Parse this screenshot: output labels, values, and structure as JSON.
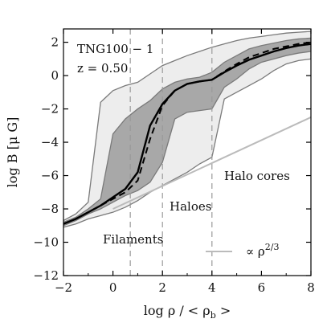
{
  "chart_data": {
    "type": "line",
    "xlabel": "log ρ / < ρ_b >",
    "ylabel": "log B [μ G]",
    "xlim": [
      -2,
      8
    ],
    "ylim": [
      -12,
      2.8
    ],
    "xticks": [
      "−2",
      "0",
      "2",
      "4",
      "6",
      "8"
    ],
    "yticks": [
      "−12",
      "−10",
      "−8",
      "−6",
      "−4",
      "−2",
      "0",
      "2"
    ],
    "xtick_values": [
      -2,
      0,
      2,
      4,
      6,
      8
    ],
    "ytick_values": [
      -12,
      -10,
      -8,
      -6,
      -4,
      -2,
      0,
      2
    ],
    "annotation_lines": [
      "TNG100 − 1",
      "z = 0.50"
    ],
    "region_labels": [
      "Filaments",
      "Haloes",
      "Halo cores"
    ],
    "legend_label": "∝ ρ^{2/3}",
    "legend_position": "bottom-right",
    "vlines": [
      0.7,
      2.0,
      4.0
    ],
    "colors": {
      "outer_band": "#ededed",
      "inner_band": "#a8a8a8",
      "band_edge": "#7a7a7a",
      "median": "#000000",
      "mean": "#000000",
      "reference": "#bbbbbb",
      "vline": "#999999"
    },
    "series": [
      {
        "style": "solid",
        "x": [
          -2,
          -1.5,
          -1,
          -0.5,
          0,
          0.5,
          1,
          1.25,
          1.5,
          2,
          2.5,
          3,
          3.5,
          4,
          4.5,
          5,
          5.5,
          6,
          6.5,
          7,
          7.5,
          8
        ],
        "y": [
          -8.9,
          -8.6,
          -8.2,
          -7.8,
          -7.3,
          -6.8,
          -5.8,
          -4.4,
          -3.0,
          -1.7,
          -0.9,
          -0.5,
          -0.35,
          -0.25,
          0.2,
          0.6,
          0.95,
          1.2,
          1.45,
          1.65,
          1.8,
          1.9
        ]
      },
      {
        "style": "dashed",
        "x": [
          -2,
          -1.5,
          -1,
          -0.5,
          0,
          0.5,
          1,
          1.5,
          2,
          2.5,
          3,
          3.5,
          4,
          4.5,
          5,
          5.5,
          6,
          6.5,
          7,
          7.5,
          8
        ],
        "y": [
          -8.9,
          -8.6,
          -8.2,
          -7.8,
          -7.4,
          -7.0,
          -6.3,
          -3.8,
          -1.8,
          -0.9,
          -0.5,
          -0.35,
          -0.25,
          0.25,
          0.7,
          1.1,
          1.35,
          1.6,
          1.75,
          1.9,
          2.0
        ]
      },
      {
        "style": "band_outer",
        "x": [
          -2,
          -1.5,
          -1,
          -0.5,
          0,
          0.5,
          1,
          1.5,
          2,
          2.5,
          3,
          3.5,
          4,
          4.5,
          5,
          5.5,
          6,
          6.5,
          7,
          7.5,
          8
        ],
        "upper": [
          -8.7,
          -8.3,
          -7.6,
          -1.6,
          -0.9,
          -0.6,
          -0.4,
          0.1,
          0.6,
          0.9,
          1.2,
          1.45,
          1.7,
          1.9,
          2.1,
          2.25,
          2.35,
          2.45,
          2.55,
          2.6,
          2.65
        ],
        "lower": [
          -9.1,
          -8.9,
          -8.6,
          -8.4,
          -8.2,
          -7.9,
          -7.5,
          -7.0,
          -6.6,
          -6.2,
          -5.8,
          -5.3,
          -4.9,
          -1.4,
          -1.0,
          -0.6,
          -0.2,
          0.3,
          0.7,
          0.9,
          1.0
        ]
      },
      {
        "style": "band_inner",
        "x": [
          -2,
          -1.5,
          -1,
          -0.5,
          0,
          0.5,
          1,
          1.5,
          2,
          2.5,
          3,
          3.5,
          4,
          4.5,
          5,
          5.5,
          6,
          6.5,
          7,
          7.5,
          8
        ],
        "upper": [
          -8.8,
          -8.5,
          -8.0,
          -7.4,
          -3.5,
          -2.6,
          -2.0,
          -1.5,
          -0.8,
          -0.4,
          -0.2,
          -0.1,
          0.2,
          0.8,
          1.2,
          1.6,
          1.8,
          1.95,
          2.1,
          2.2,
          2.25
        ],
        "lower": [
          -9.0,
          -8.7,
          -8.3,
          -8.0,
          -7.6,
          -7.2,
          -6.9,
          -6.4,
          -5.2,
          -2.6,
          -2.2,
          -2.1,
          -2.0,
          -0.7,
          -0.2,
          0.4,
          0.8,
          1.0,
          1.2,
          1.35,
          1.45
        ]
      },
      {
        "style": "reference",
        "x": [
          0,
          8
        ],
        "y": [
          -8.0,
          -2.5
        ]
      }
    ]
  }
}
